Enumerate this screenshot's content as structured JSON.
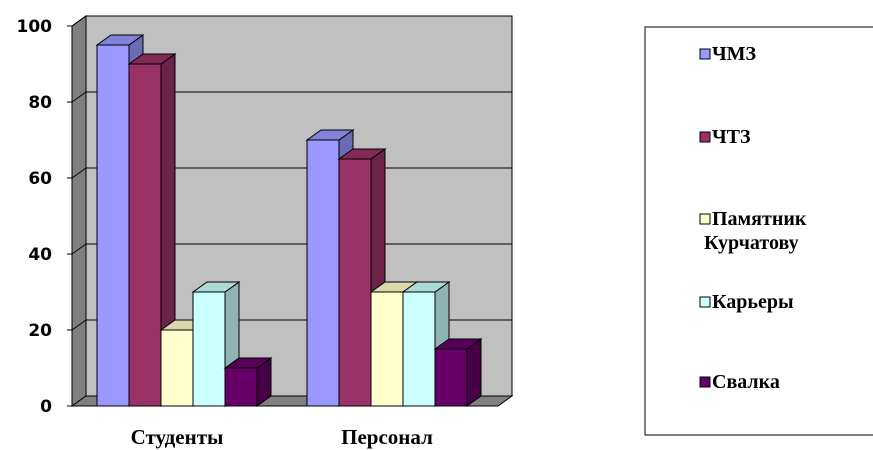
{
  "chart_data": {
    "type": "bar",
    "categories": [
      "Студенты",
      "Персонал"
    ],
    "series": [
      {
        "name": "ЧМЗ",
        "values": [
          95,
          70
        ],
        "color": "#9999ff"
      },
      {
        "name": "ЧТЗ",
        "values": [
          90,
          65
        ],
        "color": "#993366"
      },
      {
        "name": "Памятник Курчатову",
        "values": [
          20,
          30
        ],
        "color": "#ffffcc"
      },
      {
        "name": "Карьеры",
        "values": [
          30,
          30
        ],
        "color": "#ccffff"
      },
      {
        "name": "Свалка",
        "values": [
          10,
          15
        ],
        "color": "#660066"
      }
    ],
    "yticks": [
      "0",
      "20",
      "40",
      "60",
      "80",
      "100"
    ],
    "ylim": [
      0,
      100
    ],
    "grid": true,
    "legend_position": "right",
    "wall_color": "#c0c0c0",
    "floor_color": "#808080"
  }
}
